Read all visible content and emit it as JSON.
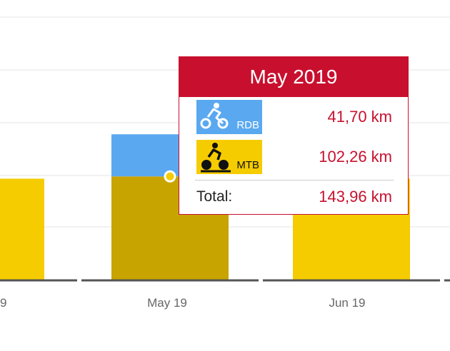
{
  "chart_data": {
    "type": "bar",
    "stacked": true,
    "categories": [
      "",
      "May 19",
      "Jun 19"
    ],
    "tick_labels": [
      "9",
      "May 19",
      "Jun 19"
    ],
    "series": [
      {
        "name": "MTB",
        "values": [
          100,
          102.26,
          100
        ]
      },
      {
        "name": "RDB",
        "values": [
          0,
          41.7,
          0
        ]
      }
    ],
    "ylim": [
      0,
      260
    ],
    "grid": true,
    "highlighted_category": "May 19",
    "colors": {
      "mtb": "#f5cc00",
      "mtb_highlight": "#c8a400",
      "rdb": "#5aa8f0",
      "axis": "#555555",
      "grid": "#e6e6e6"
    }
  },
  "tooltip": {
    "title": "May 2019",
    "rows": [
      {
        "badge": "RDB",
        "icon": "road-bike-icon",
        "value": "41,70 km"
      },
      {
        "badge": "MTB",
        "icon": "mountain-bike-icon",
        "value": "102,26 km"
      }
    ],
    "total_label": "Total:",
    "total_value": "143,96 km",
    "accent": "#c8102e"
  }
}
